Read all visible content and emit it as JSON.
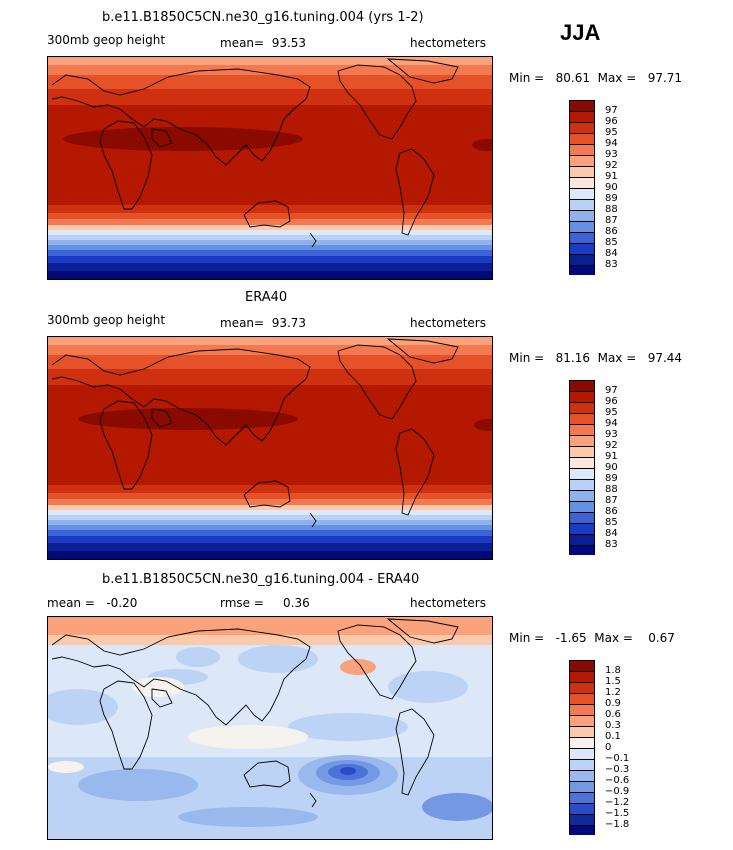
{
  "season_label": "JJA",
  "units": "hectometers",
  "panels": [
    {
      "title": "b.e11.B1850C5CN.ne30_g16.tuning.004 (yrs 1-2)",
      "variable": "300mb geop height",
      "stat_text": "mean=  93.53",
      "minmax_text": "Min =   80.61  Max =   97.71",
      "levels": [
        "97",
        "96",
        "95",
        "94",
        "93",
        "92",
        "91",
        "90",
        "89",
        "88",
        "87",
        "86",
        "85",
        "84",
        "83"
      ]
    },
    {
      "title": "ERA40",
      "variable": "300mb geop height",
      "stat_text": "mean=  93.73",
      "minmax_text": "Min =   81.16  Max =   97.44",
      "levels": [
        "97",
        "96",
        "95",
        "94",
        "93",
        "92",
        "91",
        "90",
        "89",
        "88",
        "87",
        "86",
        "85",
        "84",
        "83"
      ]
    },
    {
      "title": "b.e11.B1850C5CN.ne30_g16.tuning.004 - ERA40",
      "stat_text": "mean =   -0.20",
      "rmse_text": "rmse =     0.36",
      "minmax_text": "Min =   -1.65  Max =    0.67",
      "levels": [
        "1.8",
        "1.5",
        "1.2",
        "0.9",
        "0.6",
        "0.3",
        "0.1",
        "0",
        "−0.1",
        "−0.3",
        "−0.6",
        "−0.9",
        "−1.2",
        "−1.5",
        "−1.8"
      ]
    }
  ],
  "colors": {
    "abs_scale": [
      "#8b0a00",
      "#b41800",
      "#cf3010",
      "#e5522a",
      "#f37a50",
      "#f9a27c",
      "#fbc9ac",
      "#fbe8dc",
      "#dde9f9",
      "#b9d1f4",
      "#8fb2ec",
      "#6690e2",
      "#3c64d8",
      "#1a3bc4",
      "#0a1e96",
      "#000a7a"
    ],
    "diff_scale": [
      "#8b0a00",
      "#b41800",
      "#cf3010",
      "#e5522a",
      "#f37a50",
      "#f9a27c",
      "#fbc9ac",
      "#f6f3ef",
      "#dce8f8",
      "#bcd3f5",
      "#98b8ee",
      "#7499e4",
      "#4d72da",
      "#2a4ac8",
      "#12289e",
      "#000a7a"
    ]
  }
}
